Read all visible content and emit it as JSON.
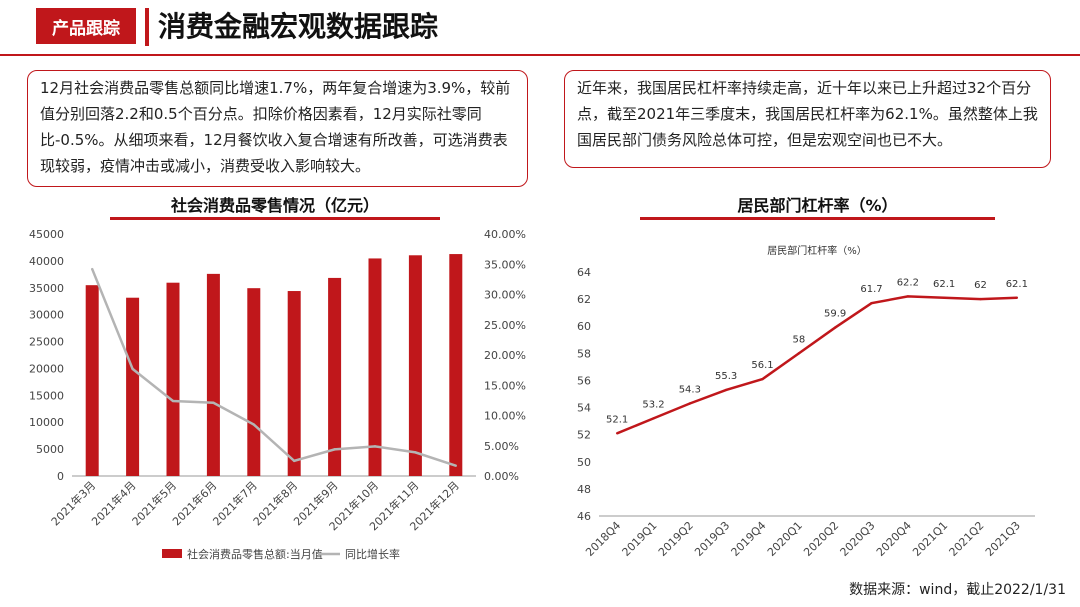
{
  "header": {
    "tag": "产品跟踪",
    "title": "消费金融宏观数据跟踪"
  },
  "text_boxes": {
    "left": "12月社会消费品零售总额同比增速1.7%，两年复合增速为3.9%，较前值分别回落2.2和0.5个百分点。扣除价格因素看，12月实际社零同比-0.5%。从细项来看，12月餐饮收入复合增速有所改善，可选消费表现较弱，疫情冲击或减小，消费受收入影响较大。",
    "right": "近年来，我国居民杠杆率持续走高，近十年以来已上升超过32个百分点，截至2021年三季度末，我国居民杠杆率为62.1%。虽然整体上我国居民部门债务风险总体可控，但是宏观空间也已不大。"
  },
  "footer": "数据来源：wind，截止2022/1/31",
  "colors": {
    "accent": "#c0171b",
    "line_gray": "#b4b4b4"
  },
  "chart_data": [
    {
      "type": "bar",
      "title": "社会消费品零售情况（亿元）",
      "categories": [
        "2021年3月",
        "2021年4月",
        "2021年5月",
        "2021年6月",
        "2021年7月",
        "2021年8月",
        "2021年9月",
        "2021年10月",
        "2021年11月",
        "2021年12月"
      ],
      "series": [
        {
          "name": "社会消费品零售总额:当月值",
          "type": "bar",
          "axis": "left",
          "values": [
            35484,
            33153,
            35945,
            37586,
            34925,
            34395,
            36833,
            40454,
            41043,
            41269
          ]
        },
        {
          "name": "同比增长率",
          "type": "line",
          "axis": "right",
          "values": [
            34.2,
            17.7,
            12.4,
            12.1,
            8.5,
            2.5,
            4.4,
            4.9,
            3.9,
            1.7
          ]
        }
      ],
      "ylim_left": [
        0,
        45000
      ],
      "yticks_left": [
        "0",
        "5000",
        "10000",
        "15000",
        "20000",
        "25000",
        "30000",
        "35000",
        "40000",
        "45000"
      ],
      "ylim_right": [
        0,
        40
      ],
      "yticks_right": [
        "0.00%",
        "5.00%",
        "10.00%",
        "15.00%",
        "20.00%",
        "25.00%",
        "30.00%",
        "35.00%",
        "40.00%"
      ],
      "legend": "bottom",
      "grid": false
    },
    {
      "type": "line",
      "title": "居民部门杠杆率（%）",
      "inner_title": "居民部门杠杆率（%）",
      "categories": [
        "2018Q4",
        "2019Q1",
        "2019Q2",
        "2019Q3",
        "2019Q4",
        "2020Q1",
        "2020Q2",
        "2020Q3",
        "2020Q4",
        "2021Q1",
        "2021Q2",
        "2021Q3"
      ],
      "series": [
        {
          "name": "居民部门杠杆率",
          "values": [
            52.1,
            53.2,
            54.3,
            55.3,
            56.1,
            58,
            59.9,
            61.7,
            62.2,
            62.1,
            62,
            62.1
          ],
          "labels": [
            "52.1",
            "53.2",
            "54.3",
            "55.3",
            "56.1",
            "58",
            "59.9",
            "61.7",
            "62.2",
            "62.1",
            "62",
            "62.1"
          ]
        }
      ],
      "ylim": [
        46,
        64
      ],
      "yticks": [
        "46",
        "48",
        "50",
        "52",
        "54",
        "56",
        "58",
        "60",
        "62",
        "64"
      ],
      "legend": "none",
      "grid": false
    }
  ]
}
